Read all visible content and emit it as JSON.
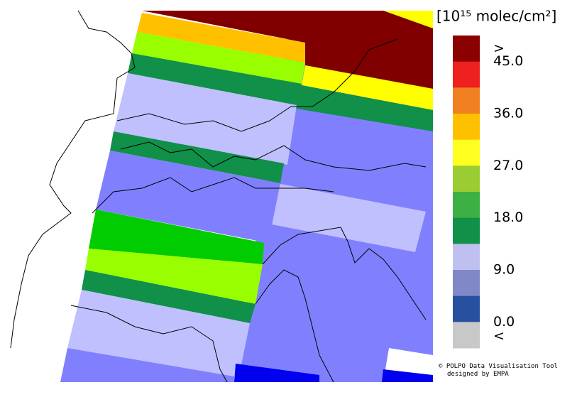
{
  "legend": {
    "title": "[10¹⁵ molec/cm²]",
    "labels": [
      ">",
      "45.0",
      "36.0",
      "27.0",
      "18.0",
      "9.0",
      "0.0",
      "<"
    ],
    "colors": [
      "#8b0000",
      "#ee2020",
      "#f08020",
      "#ffc000",
      "#ffff20",
      "#9acd32",
      "#3cb043",
      "#109048",
      "#c0c0f0",
      "#8088c8",
      "#2850a0",
      "#c8c8c8"
    ]
  },
  "credit": [
    "© POLPO Data Visualisation Tool",
    "designed by EMPA"
  ]
}
